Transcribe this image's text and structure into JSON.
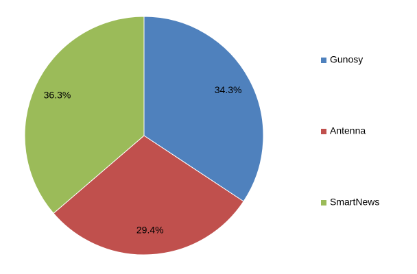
{
  "chart_data": {
    "type": "pie",
    "categories": [
      "Gunosy",
      "Antenna",
      "SmartNews"
    ],
    "values": [
      34.3,
      29.4,
      36.3
    ],
    "value_labels": [
      "34.3%",
      "29.4%",
      "36.3%"
    ],
    "colors": [
      "#4f81bd",
      "#c0504d",
      "#9bbb59"
    ],
    "legend": "right"
  }
}
